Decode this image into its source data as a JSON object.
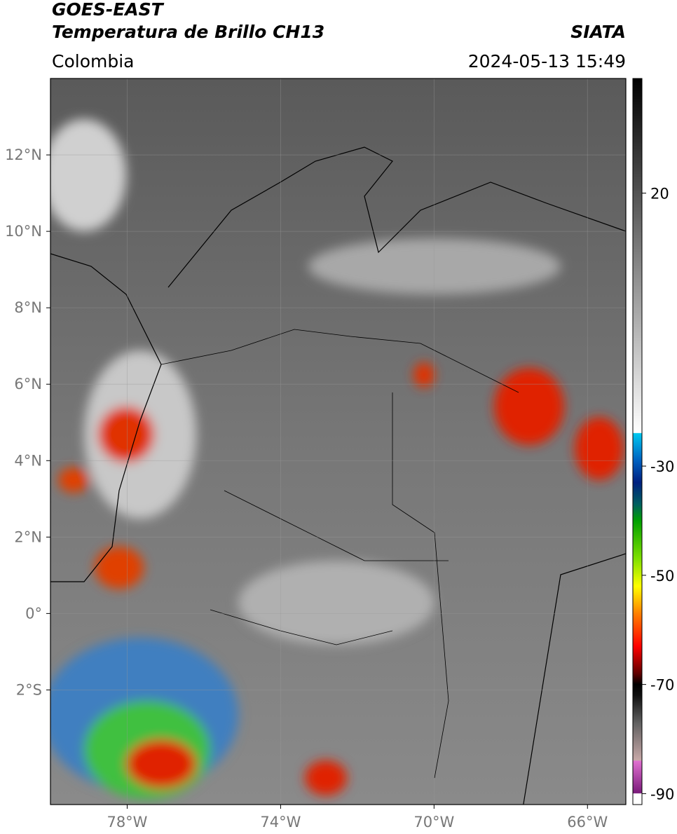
{
  "header": {
    "title": "GOES-EAST",
    "subtitle": "Temperatura de Brillo CH13",
    "source": "SIATA",
    "region": "Colombia",
    "datetime": "2024-05-13 15:49"
  },
  "map": {
    "xlim": [
      -80,
      -65
    ],
    "ylim": [
      -5,
      14
    ],
    "xticks": [
      {
        "value": -78,
        "label": "78°W"
      },
      {
        "value": -74,
        "label": "74°W"
      },
      {
        "value": -70,
        "label": "70°W"
      },
      {
        "value": -66,
        "label": "66°W"
      }
    ],
    "yticks": [
      {
        "value": 12,
        "label": "12°N"
      },
      {
        "value": 10,
        "label": "10°N"
      },
      {
        "value": 8,
        "label": "8°N"
      },
      {
        "value": 6,
        "label": "6°N"
      },
      {
        "value": 4,
        "label": "4°N"
      },
      {
        "value": 2,
        "label": "2°N"
      },
      {
        "value": 0,
        "label": "0°"
      },
      {
        "value": -2,
        "label": "2°S"
      }
    ],
    "grid": true
  },
  "colorbar": {
    "lim": [
      -92,
      41
    ],
    "ticks": [
      20,
      -30,
      -50,
      -70,
      -90
    ],
    "colormap": [
      {
        "value": -92,
        "color": "#ffffff"
      },
      {
        "value": -90,
        "color": "#ffffff"
      },
      {
        "value": -89.9,
        "color": "#7a1a7a"
      },
      {
        "value": -84,
        "color": "#e070d0"
      },
      {
        "value": -83.9,
        "color": "#c8a8a8"
      },
      {
        "value": -77,
        "color": "#606060"
      },
      {
        "value": -72,
        "color": "#101010"
      },
      {
        "value": -70,
        "color": "#000000"
      },
      {
        "value": -68,
        "color": "#600000"
      },
      {
        "value": -63,
        "color": "#ff0000"
      },
      {
        "value": -57,
        "color": "#ff8000"
      },
      {
        "value": -52,
        "color": "#ffff00"
      },
      {
        "value": -47,
        "color": "#80e000"
      },
      {
        "value": -40,
        "color": "#00a000"
      },
      {
        "value": -37,
        "color": "#006060"
      },
      {
        "value": -33,
        "color": "#002080"
      },
      {
        "value": -29,
        "color": "#0060c0"
      },
      {
        "value": -24,
        "color": "#00c8f0"
      },
      {
        "value": -23.9,
        "color": "#ffffff"
      },
      {
        "value": 41,
        "color": "#000000"
      }
    ]
  }
}
